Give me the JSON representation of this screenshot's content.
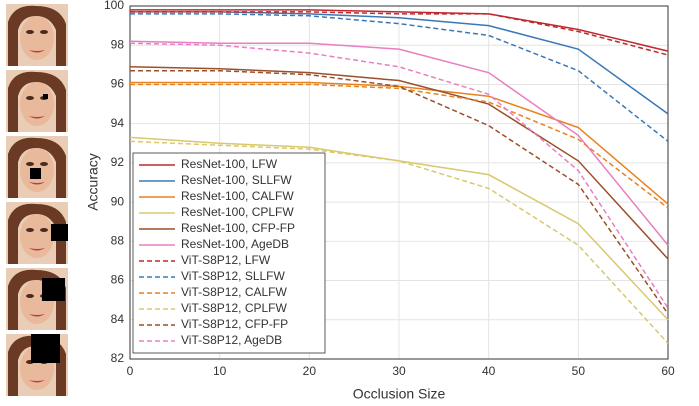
{
  "chart_data": {
    "type": "line",
    "xlabel": "Occlusion Size",
    "ylabel": "Accuracy",
    "x": [
      0,
      10,
      20,
      30,
      40,
      50,
      60
    ],
    "xlim": [
      0,
      60
    ],
    "xticks": [
      0,
      10,
      20,
      30,
      40,
      50,
      60
    ],
    "ylim": [
      82,
      100
    ],
    "yticks": [
      82,
      84,
      86,
      88,
      90,
      92,
      94,
      96,
      98,
      100
    ],
    "grid": true,
    "legend": "lower left",
    "series": [
      {
        "name": "ResNet-100, LFW",
        "color": "#c0282d",
        "line_style": "solid",
        "values": [
          99.8,
          99.8,
          99.8,
          99.7,
          99.6,
          98.8,
          97.7
        ]
      },
      {
        "name": "ResNet-100, SLLFW",
        "color": "#3a78b5",
        "line_style": "solid",
        "values": [
          99.7,
          99.7,
          99.6,
          99.4,
          99.0,
          97.8,
          94.5
        ]
      },
      {
        "name": "ResNet-100, CALFW",
        "color": "#e8821e",
        "line_style": "solid",
        "values": [
          96.1,
          96.1,
          96.1,
          95.9,
          95.4,
          93.8,
          89.9
        ]
      },
      {
        "name": "ResNet-100, CPLFW",
        "color": "#d8c86e",
        "line_style": "solid",
        "values": [
          93.3,
          93.0,
          92.8,
          92.1,
          91.4,
          88.9,
          84.0
        ]
      },
      {
        "name": "ResNet-100, CFP-FP",
        "color": "#9b4f2a",
        "line_style": "solid",
        "values": [
          96.9,
          96.8,
          96.6,
          96.2,
          95.0,
          92.1,
          87.1
        ]
      },
      {
        "name": "ResNet-100, AgeDB",
        "color": "#e87fc0",
        "line_style": "solid",
        "values": [
          98.2,
          98.1,
          98.1,
          97.8,
          96.6,
          93.4,
          87.8
        ]
      },
      {
        "name": "ViT-S8P12, LFW",
        "color": "#c0282d",
        "line_style": "dashed",
        "values": [
          99.7,
          99.7,
          99.7,
          99.6,
          99.6,
          98.7,
          97.5
        ]
      },
      {
        "name": "ViT-S8P12, SLLFW",
        "color": "#3a78b5",
        "line_style": "dashed",
        "values": [
          99.6,
          99.6,
          99.5,
          99.1,
          98.5,
          96.7,
          93.1
        ]
      },
      {
        "name": "ViT-S8P12, CALFW",
        "color": "#e8821e",
        "line_style": "dashed",
        "values": [
          96.0,
          96.0,
          96.0,
          95.8,
          95.1,
          93.2,
          89.7
        ]
      },
      {
        "name": "ViT-S8P12, CPLFW",
        "color": "#d8c86e",
        "line_style": "dashed",
        "values": [
          93.1,
          92.9,
          92.7,
          92.1,
          90.7,
          87.8,
          82.8
        ]
      },
      {
        "name": "ViT-S8P12, CFP-FP",
        "color": "#9b4f2a",
        "line_style": "dashed",
        "values": [
          96.7,
          96.7,
          96.5,
          95.9,
          93.9,
          90.9,
          84.3
        ]
      },
      {
        "name": "ViT-S8P12, AgeDB",
        "color": "#e87fc0",
        "line_style": "dashed",
        "values": [
          98.1,
          98.0,
          97.6,
          96.9,
          95.5,
          91.6,
          84.6
        ]
      }
    ]
  }
}
